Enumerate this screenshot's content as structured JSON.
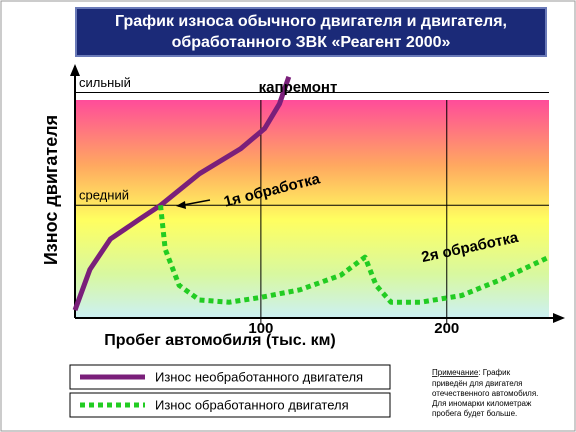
{
  "chart_data": {
    "type": "line",
    "title": "График износа обычного двигателя  и двигателя,",
    "subtitle": "обработанного ЗВК «Реагент 2000»",
    "x_label": "Пробег автомобиля (тыс. км)",
    "y_label": "Износ двигателя",
    "xlim": [
      0,
      255
    ],
    "xticks": [
      100,
      200
    ],
    "ylim": [
      0,
      2.2
    ],
    "yticks": [
      {
        "value": 1,
        "label": "средний"
      },
      {
        "value": 2,
        "label": "сильный"
      }
    ],
    "grid": true,
    "series": [
      {
        "name": "Износ необработанного двигателя",
        "color": "#7a1f7a",
        "style": "solid",
        "x": [
          0,
          8,
          19,
          35,
          46,
          67,
          89,
          102,
          110,
          115
        ],
        "values": [
          0.07,
          0.43,
          0.7,
          0.88,
          1.0,
          1.28,
          1.5,
          1.68,
          1.9,
          2.14
        ]
      },
      {
        "name": "Износ обработанного двигателя",
        "color": "#22cc22",
        "style": "dotted",
        "x": [
          46,
          48.5,
          56,
          67,
          83,
          99,
          121,
          143,
          156,
          162,
          170,
          186,
          208,
          229,
          255
        ],
        "values": [
          1.0,
          0.61,
          0.29,
          0.16,
          0.14,
          0.18,
          0.25,
          0.38,
          0.54,
          0.29,
          0.14,
          0.14,
          0.2,
          0.34,
          0.54
        ]
      }
    ],
    "annotations": [
      "капремонт",
      "1я обработка",
      "2я обработка"
    ],
    "note": {
      "label": "Примечание",
      "lines": [
        ": График",
        "приведён для двигателя",
        "отечественного автомобиля.",
        "Для иномарки километраж",
        "пробега  будет больше."
      ]
    }
  }
}
